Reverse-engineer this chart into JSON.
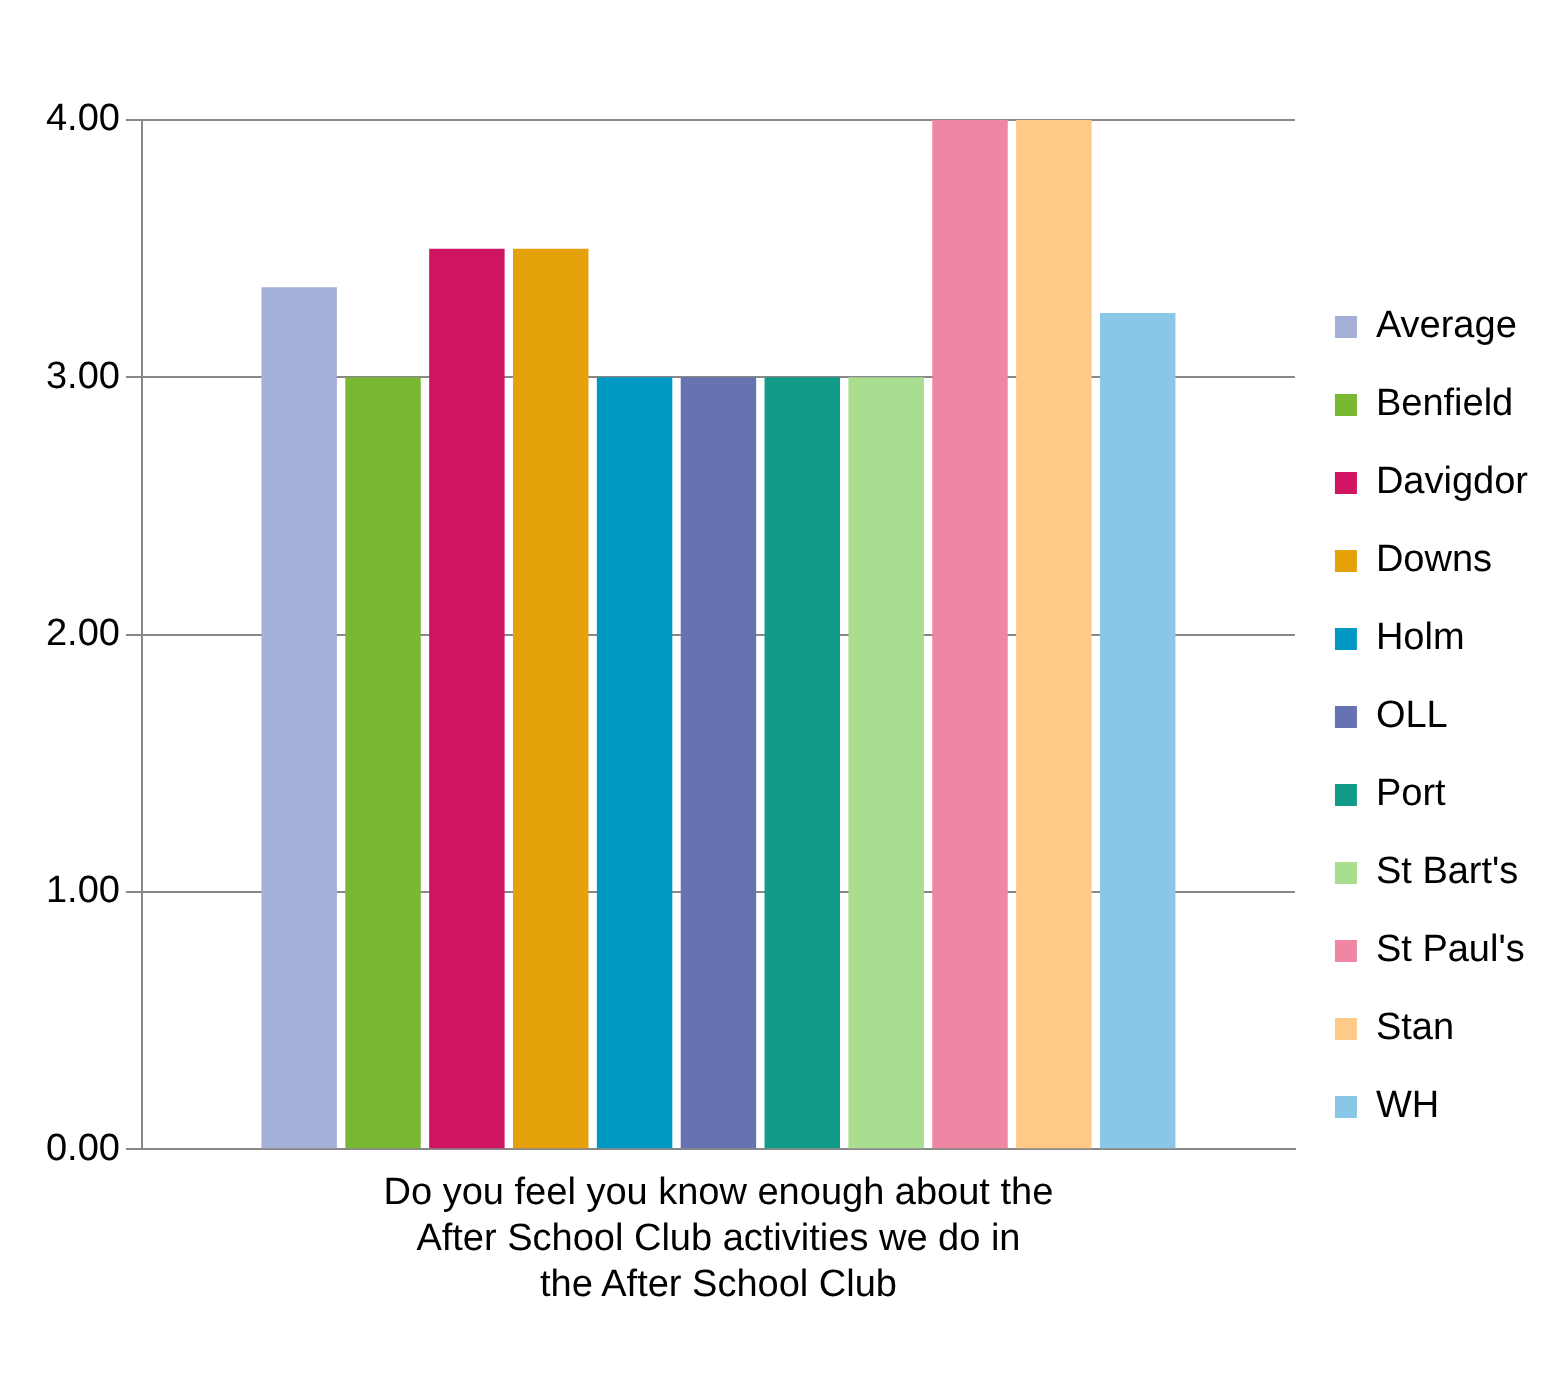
{
  "chart_data": {
    "type": "bar",
    "categories": [
      "Do you feel you know enough about the After School Club activities we do in the After School Club"
    ],
    "series": [
      {
        "name": "Average",
        "color": "#a5b0d8",
        "values": [
          3.35
        ]
      },
      {
        "name": "Benfield",
        "color": "#78b833",
        "values": [
          3.0
        ]
      },
      {
        "name": "Davigdor",
        "color": "#cf1562",
        "values": [
          3.5
        ]
      },
      {
        "name": "Downs",
        "color": "#e5a10a",
        "values": [
          3.5
        ]
      },
      {
        "name": "Holm",
        "color": "#0099c4",
        "values": [
          3.0
        ]
      },
      {
        "name": "OLL",
        "color": "#6673b0",
        "values": [
          3.0
        ]
      },
      {
        "name": "Port",
        "color": "#139b8a",
        "values": [
          3.0
        ]
      },
      {
        "name": "St Bart's",
        "color": "#a9dd8f",
        "values": [
          3.0
        ]
      },
      {
        "name": "St Paul's",
        "color": "#ef86a4",
        "values": [
          4.0
        ]
      },
      {
        "name": "Stan",
        "color": "#ffc987",
        "values": [
          4.0
        ]
      },
      {
        "name": "WH",
        "color": "#8ac6e6",
        "values": [
          3.25
        ]
      }
    ],
    "ylim": [
      0,
      4
    ],
    "yticks": [
      {
        "value": 0,
        "label": "0.00"
      },
      {
        "value": 1,
        "label": "1.00"
      },
      {
        "value": 2,
        "label": "2.00"
      },
      {
        "value": 3,
        "label": "3.00"
      },
      {
        "value": 4,
        "label": "4.00"
      }
    ],
    "grid": "y",
    "legend": "right"
  }
}
